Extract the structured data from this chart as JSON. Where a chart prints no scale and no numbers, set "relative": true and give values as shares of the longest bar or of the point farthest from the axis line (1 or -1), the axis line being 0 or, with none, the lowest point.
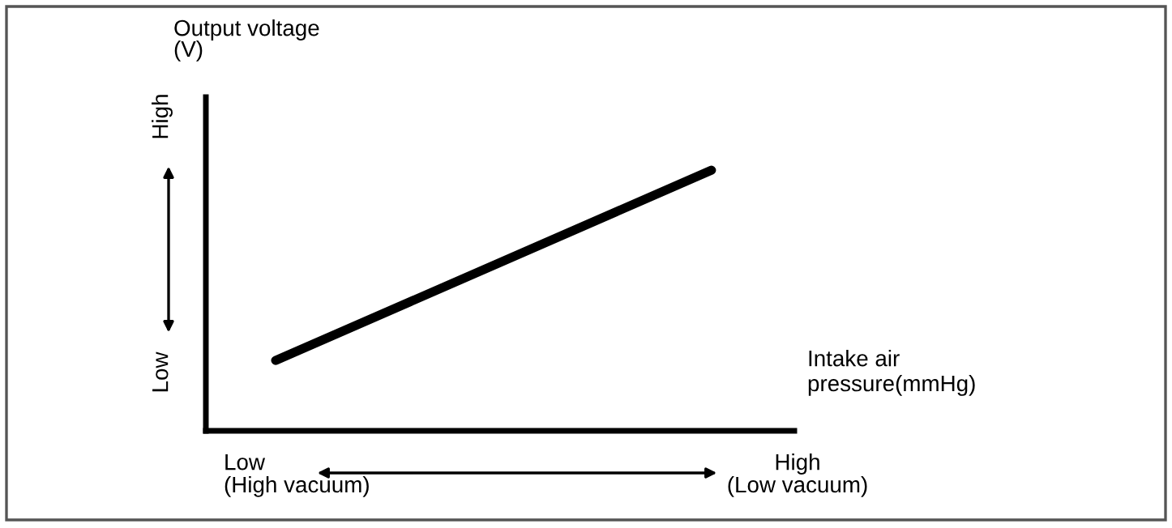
{
  "chart_data": {
    "type": "line",
    "relative": true,
    "ylabel": "Output voltage\n(V)",
    "xlabel": "Intake air\npressure(mmHg)",
    "categories": [
      null,
      null
    ],
    "series": [
      {
        "color": "#000000",
        "values": [
          0.27,
          1
        ]
      }
    ],
    "annotations": [
      "High",
      "Low",
      "Low\n(High vacuum)",
      "High\n(Low vacuum)"
    ],
    "legend": false
  }
}
